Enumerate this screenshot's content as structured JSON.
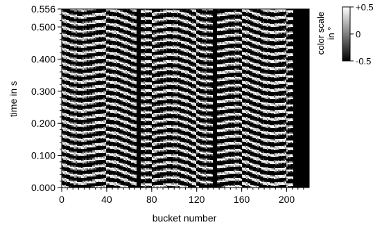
{
  "chart_data": {
    "type": "heatmap",
    "title": "",
    "xlabel": "bucket number",
    "ylabel": "time in s",
    "x_range": [
      0,
      220
    ],
    "y_range": [
      0.0,
      0.556
    ],
    "x_ticks": [
      "0",
      "40",
      "80",
      "120",
      "160",
      "200"
    ],
    "y_ticks": [
      "0.000",
      "0.100",
      "0.200",
      "0.300",
      "0.400",
      "0.500",
      "0.556"
    ],
    "y_tick_values": [
      0.0,
      0.1,
      0.2,
      0.3,
      0.4,
      0.5,
      0.556
    ],
    "x_tick_values": [
      0,
      40,
      80,
      120,
      160,
      200
    ],
    "colorbar": {
      "title_line1": "color scale",
      "title_line2": "in °",
      "range": [
        -0.5,
        0.5
      ],
      "ticks": [
        "+0.5",
        "0",
        "-0.5"
      ],
      "tick_values": [
        0.5,
        0,
        -0.5
      ],
      "colormap": "gray"
    },
    "empty_bucket_ranges": [
      [
        66,
        70
      ],
      [
        134,
        138
      ],
      [
        206,
        220
      ]
    ],
    "oscillation": {
      "time_period_s": 0.0225,
      "description_hidden": true
    }
  }
}
